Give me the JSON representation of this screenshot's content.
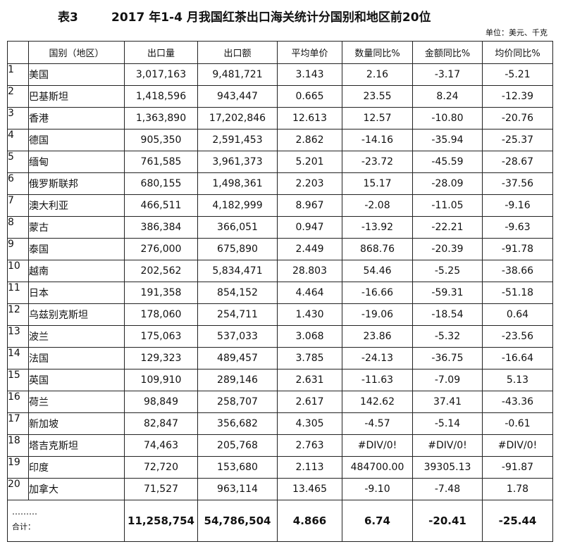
{
  "title": {
    "label": "表3",
    "main": "2017 年1-4 月我国红茶出口海关统计分国别和地区前20位"
  },
  "unit": "单位：美元、千克",
  "headers": [
    "",
    "国别（地区）",
    "出口量",
    "出口额",
    "平均单价",
    "数量同比%",
    "金额同比%",
    "均价同比%"
  ],
  "rows": [
    [
      "1",
      "美国",
      "3,017,163",
      "9,481,721",
      "3.143",
      "2.16",
      "-3.17",
      "-5.21"
    ],
    [
      "2",
      "巴基斯坦",
      "1,418,596",
      "943,447",
      "0.665",
      "23.55",
      "8.24",
      "-12.39"
    ],
    [
      "3",
      "香港",
      "1,363,890",
      "17,202,846",
      "12.613",
      "12.57",
      "-10.80",
      "-20.76"
    ],
    [
      "4",
      "德国",
      "905,350",
      "2,591,453",
      "2.862",
      "-14.16",
      "-35.94",
      "-25.37"
    ],
    [
      "5",
      "缅甸",
      "761,585",
      "3,961,373",
      "5.201",
      "-23.72",
      "-45.59",
      "-28.67"
    ],
    [
      "6",
      "俄罗斯联邦",
      "680,155",
      "1,498,361",
      "2.203",
      "15.17",
      "-28.09",
      "-37.56"
    ],
    [
      "7",
      "澳大利亚",
      "466,511",
      "4,182,999",
      "8.967",
      "-2.08",
      "-11.05",
      "-9.16"
    ],
    [
      "8",
      "蒙古",
      "386,384",
      "366,051",
      "0.947",
      "-13.92",
      "-22.21",
      "-9.63"
    ],
    [
      "9",
      "泰国",
      "276,000",
      "675,890",
      "2.449",
      "868.76",
      "-20.39",
      "-91.78"
    ],
    [
      "10",
      "越南",
      "202,562",
      "5,834,471",
      "28.803",
      "54.46",
      "-5.25",
      "-38.66"
    ],
    [
      "11",
      "日本",
      "191,358",
      "854,152",
      "4.464",
      "-16.66",
      "-59.31",
      "-51.18"
    ],
    [
      "12",
      "乌兹别克斯坦",
      "178,060",
      "254,711",
      "1.430",
      "-19.06",
      "-18.54",
      "0.64"
    ],
    [
      "13",
      "波兰",
      "175,063",
      "537,033",
      "3.068",
      "23.86",
      "-5.32",
      "-23.56"
    ],
    [
      "14",
      "法国",
      "129,323",
      "489,457",
      "3.785",
      "-24.13",
      "-36.75",
      "-16.64"
    ],
    [
      "15",
      "英国",
      "109,910",
      "289,146",
      "2.631",
      "-11.63",
      "-7.09",
      "5.13"
    ],
    [
      "16",
      "荷兰",
      "98,849",
      "258,707",
      "2.617",
      "142.62",
      "37.41",
      "-43.36"
    ],
    [
      "17",
      "新加坡",
      "82,847",
      "356,682",
      "4.305",
      "-4.57",
      "-5.14",
      "-0.61"
    ],
    [
      "18",
      "塔吉克斯坦",
      "74,463",
      "205,768",
      "2.763",
      "#DIV/0!",
      "#DIV/0!",
      "#DIV/0!"
    ],
    [
      "19",
      "印度",
      "72,720",
      "153,680",
      "2.113",
      "484700.00",
      "39305.13",
      "-91.87"
    ],
    [
      "20",
      "加拿大",
      "71,527",
      "963,114",
      "13.465",
      "-9.10",
      "-7.48",
      "1.78"
    ]
  ],
  "total": {
    "dots": "………",
    "label": "合计：",
    "values": [
      "11,258,754",
      "54,786,504",
      "4.866",
      "6.74",
      "-20.41",
      "-25.44"
    ]
  }
}
